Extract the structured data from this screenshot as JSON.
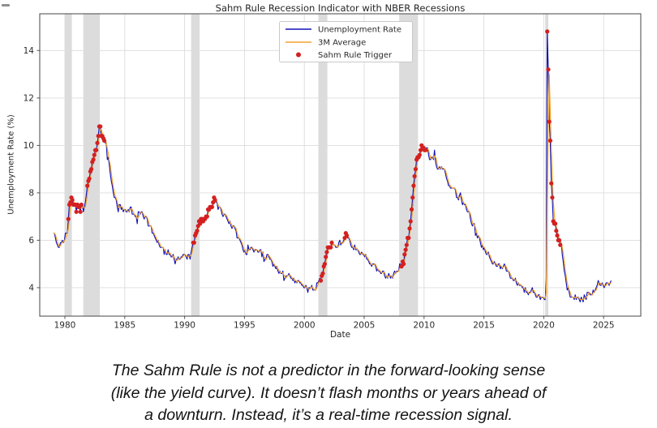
{
  "chart_data": {
    "type": "line",
    "title": "Sahm Rule Recession Indicator with NBER Recessions",
    "xlabel": "Date",
    "ylabel": "Unemployment Rate (%)",
    "xlim": [
      1977.9,
      2028.1
    ],
    "ylim": [
      2.8,
      15.55
    ],
    "x_ticks": [
      1980,
      1985,
      1990,
      1995,
      2000,
      2005,
      2010,
      2015,
      2020,
      2025
    ],
    "y_ticks": [
      4,
      6,
      8,
      10,
      12,
      14
    ],
    "grid": true,
    "legend": {
      "position": "upper-center",
      "entries": [
        {
          "label": "Unemployment Rate",
          "marker": "line",
          "color": "#1212b8"
        },
        {
          "label": "3M Average",
          "marker": "line",
          "color": "#f2a22e"
        },
        {
          "label": "Sahm Rule Trigger",
          "marker": "dot",
          "color": "#d42020"
        }
      ]
    },
    "colors": {
      "unemployment_line": "#1212b8",
      "avg_line": "#f2a22e",
      "trigger_dot": "#d42020",
      "recession_band": "#d6d6d6",
      "grid": "#dcdcdc",
      "spine": "#555555",
      "tick_text": "#2b2b2b"
    },
    "recession_bands": [
      [
        1980.0,
        1980.58
      ],
      [
        1981.54,
        1982.92
      ],
      [
        1990.54,
        1991.25
      ],
      [
        2001.17,
        2001.92
      ],
      [
        2007.92,
        2009.5
      ],
      [
        2020.12,
        2020.38
      ]
    ],
    "sahm_trigger_windows": [
      [
        1980.25,
        1981.45
      ],
      [
        1981.83,
        1983.3
      ],
      [
        1990.7,
        1992.6
      ],
      [
        2001.3,
        2002.3
      ],
      [
        2003.35,
        2003.6
      ],
      [
        2008.05,
        2010.2
      ],
      [
        2020.27,
        2021.45
      ]
    ],
    "series": [
      {
        "name": "Unemployment Rate",
        "color": "#1212b8",
        "start_year": 1979,
        "frequency": "monthly",
        "monthly_values": [
          [
            6.3,
            6.3,
            6.1,
            5.9,
            5.8,
            5.7,
            5.7,
            5.9,
            5.9,
            6.0,
            5.9,
            6.0
          ],
          [
            6.3,
            6.3,
            6.3,
            6.9,
            7.5,
            7.6,
            7.8,
            7.7,
            7.5,
            7.5,
            7.5,
            7.2
          ],
          [
            7.5,
            7.4,
            7.4,
            7.2,
            7.5,
            7.5,
            7.2,
            7.4,
            7.6,
            7.9,
            8.3,
            8.5
          ],
          [
            8.6,
            8.9,
            9.0,
            9.3,
            9.4,
            9.6,
            9.8,
            9.8,
            10.1,
            10.4,
            10.8,
            10.8
          ],
          [
            10.4,
            10.4,
            10.3,
            10.2,
            10.1,
            10.1,
            9.4,
            9.5,
            9.2,
            8.8,
            8.5,
            8.3
          ],
          [
            8.0,
            7.8,
            7.8,
            7.7,
            7.4,
            7.2,
            7.5,
            7.5,
            7.3,
            7.4,
            7.2,
            7.3
          ],
          [
            7.3,
            7.2,
            7.2,
            7.3,
            7.2,
            7.4,
            7.4,
            7.1,
            7.1,
            7.1,
            7.0,
            7.0
          ],
          [
            6.7,
            7.2,
            7.2,
            7.1,
            7.2,
            7.2,
            7.0,
            6.9,
            7.0,
            7.0,
            6.9,
            6.6
          ],
          [
            6.6,
            6.6,
            6.6,
            6.3,
            6.3,
            6.2,
            6.1,
            6.0,
            5.9,
            6.0,
            5.8,
            5.7
          ],
          [
            5.7,
            5.7,
            5.7,
            5.4,
            5.6,
            5.4,
            5.4,
            5.6,
            5.4,
            5.4,
            5.3,
            5.3
          ],
          [
            5.4,
            5.2,
            5.0,
            5.2,
            5.2,
            5.3,
            5.2,
            5.2,
            5.3,
            5.3,
            5.4,
            5.4
          ],
          [
            5.4,
            5.3,
            5.2,
            5.4,
            5.4,
            5.2,
            5.5,
            5.7,
            5.9,
            5.9,
            6.2,
            6.3
          ],
          [
            6.4,
            6.6,
            6.8,
            6.7,
            6.9,
            6.9,
            6.8,
            6.9,
            6.9,
            7.0,
            7.0,
            7.3
          ],
          [
            7.3,
            7.4,
            7.4,
            7.4,
            7.6,
            7.8,
            7.7,
            7.6,
            7.6,
            7.3,
            7.4,
            7.4
          ],
          [
            7.3,
            7.1,
            7.0,
            7.1,
            7.1,
            7.0,
            6.9,
            6.8,
            6.7,
            6.8,
            6.6,
            6.5
          ],
          [
            6.6,
            6.6,
            6.5,
            6.4,
            6.1,
            6.1,
            6.1,
            6.0,
            5.9,
            5.8,
            5.6,
            5.5
          ],
          [
            5.6,
            5.4,
            5.4,
            5.8,
            5.6,
            5.6,
            5.7,
            5.7,
            5.6,
            5.5,
            5.6,
            5.6
          ],
          [
            5.6,
            5.5,
            5.5,
            5.6,
            5.6,
            5.3,
            5.5,
            5.1,
            5.2,
            5.2,
            5.4,
            5.4
          ],
          [
            5.3,
            5.2,
            5.2,
            5.1,
            4.9,
            5.0,
            4.9,
            4.8,
            4.9,
            4.7,
            4.6,
            4.7
          ],
          [
            4.6,
            4.6,
            4.7,
            4.3,
            4.4,
            4.5,
            4.5,
            4.5,
            4.6,
            4.5,
            4.4,
            4.4
          ],
          [
            4.3,
            4.4,
            4.2,
            4.3,
            4.2,
            4.3,
            4.3,
            4.2,
            4.2,
            4.1,
            4.1,
            4.0
          ],
          [
            4.0,
            4.1,
            4.0,
            3.8,
            4.0,
            4.0,
            4.0,
            4.1,
            3.9,
            3.9,
            3.9,
            3.9
          ],
          [
            4.2,
            4.2,
            4.3,
            4.4,
            4.3,
            4.5,
            4.6,
            4.9,
            5.0,
            5.3,
            5.5,
            5.7
          ],
          [
            5.7,
            5.7,
            5.7,
            5.9,
            5.8,
            5.8,
            5.8,
            5.7,
            5.7,
            5.7,
            5.9,
            6.0
          ],
          [
            5.8,
            5.9,
            5.9,
            6.0,
            6.1,
            6.3,
            6.2,
            6.1,
            6.1,
            6.0,
            5.8,
            5.7
          ],
          [
            5.7,
            5.6,
            5.8,
            5.6,
            5.6,
            5.6,
            5.5,
            5.4,
            5.4,
            5.5,
            5.4,
            5.4
          ],
          [
            5.3,
            5.4,
            5.2,
            5.2,
            5.1,
            5.0,
            5.0,
            4.9,
            5.0,
            5.0,
            5.0,
            4.9
          ],
          [
            4.7,
            4.8,
            4.7,
            4.7,
            4.6,
            4.6,
            4.7,
            4.7,
            4.5,
            4.4,
            4.5,
            4.4
          ],
          [
            4.6,
            4.5,
            4.4,
            4.5,
            4.4,
            4.6,
            4.7,
            4.6,
            4.7,
            4.7,
            4.7,
            5.0
          ],
          [
            5.0,
            4.9,
            5.1,
            5.0,
            5.4,
            5.6,
            5.8,
            6.1,
            6.1,
            6.5,
            6.8,
            7.3
          ],
          [
            7.8,
            8.3,
            8.7,
            9.0,
            9.4,
            9.5,
            9.5,
            9.6,
            9.8,
            10.0,
            9.9,
            9.9
          ],
          [
            9.8,
            9.8,
            9.9,
            9.9,
            9.6,
            9.4,
            9.4,
            9.5,
            9.5,
            9.4,
            9.8,
            9.3
          ],
          [
            9.1,
            9.0,
            9.0,
            9.1,
            9.0,
            9.1,
            9.0,
            9.0,
            9.0,
            8.8,
            8.6,
            8.5
          ],
          [
            8.3,
            8.3,
            8.2,
            8.2,
            8.2,
            8.2,
            8.2,
            8.1,
            7.8,
            7.8,
            7.7,
            7.9
          ],
          [
            8.0,
            7.7,
            7.5,
            7.6,
            7.5,
            7.5,
            7.3,
            7.2,
            7.2,
            7.2,
            6.9,
            6.7
          ],
          [
            6.6,
            6.7,
            6.7,
            6.2,
            6.3,
            6.1,
            6.2,
            6.1,
            5.9,
            5.7,
            5.8,
            5.6
          ],
          [
            5.7,
            5.5,
            5.4,
            5.4,
            5.5,
            5.3,
            5.2,
            5.1,
            5.0,
            5.0,
            5.1,
            5.0
          ],
          [
            4.9,
            4.9,
            5.0,
            5.0,
            4.8,
            4.9,
            4.8,
            4.9,
            5.0,
            4.9,
            4.7,
            4.7
          ],
          [
            4.7,
            4.6,
            4.4,
            4.4,
            4.4,
            4.3,
            4.3,
            4.4,
            4.2,
            4.1,
            4.2,
            4.1
          ],
          [
            4.1,
            4.1,
            4.0,
            4.0,
            3.8,
            4.0,
            3.8,
            3.8,
            3.7,
            3.8,
            3.8,
            3.9
          ],
          [
            4.0,
            3.8,
            3.8,
            3.7,
            3.6,
            3.6,
            3.7,
            3.7,
            3.5,
            3.6,
            3.6,
            3.6
          ],
          [
            3.5,
            3.5,
            4.4,
            14.8,
            13.2,
            11.0,
            10.2,
            8.4,
            7.8,
            6.8,
            6.7,
            6.7
          ],
          [
            6.4,
            6.2,
            6.0,
            6.0,
            5.8,
            5.9,
            5.4,
            5.1,
            4.7,
            4.5,
            4.2,
            3.9
          ],
          [
            4.0,
            3.8,
            3.6,
            3.6,
            3.6,
            3.6,
            3.5,
            3.7,
            3.5,
            3.6,
            3.6,
            3.5
          ],
          [
            3.4,
            3.6,
            3.5,
            3.4,
            3.7,
            3.6,
            3.5,
            3.8,
            3.8,
            3.8,
            3.7,
            3.7
          ],
          [
            3.7,
            3.9,
            3.8,
            3.9,
            4.0,
            4.1,
            4.3,
            4.2,
            4.1,
            4.1,
            4.2,
            4.1
          ],
          [
            4.0,
            4.1,
            4.2,
            4.2,
            4.2,
            4.1,
            4.2,
            4.3
          ]
        ]
      },
      {
        "name": "3M Average",
        "color": "#f2a22e",
        "derived": "3-month moving average of Unemployment Rate"
      }
    ]
  },
  "caption": {
    "lines": [
      "The Sahm Rule is not a predictor in the forward-looking sense",
      "(like the yield curve). It doesn’t flash months or years ahead of",
      "a downturn. Instead, it’s a real-time recession signal."
    ]
  }
}
